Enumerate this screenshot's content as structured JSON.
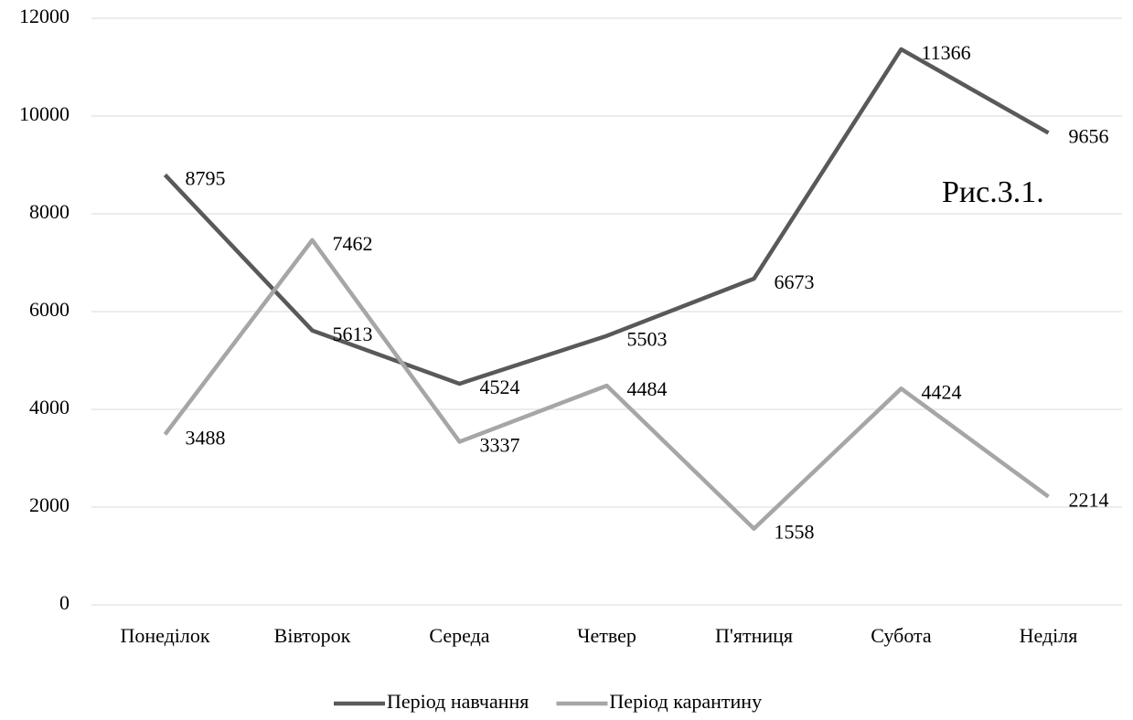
{
  "chart_data": {
    "type": "line",
    "annotation": "Рис.3.1.",
    "categories": [
      "Понеділок",
      "Вівторок",
      "Середа",
      "Четвер",
      "П'ятниця",
      "Субота",
      "Неділя"
    ],
    "series": [
      {
        "name": "Період навчання",
        "color": "#595959",
        "values": [
          8795,
          5613,
          4524,
          5503,
          6673,
          11366,
          9656
        ]
      },
      {
        "name": "Період карантину",
        "color": "#a6a6a6",
        "values": [
          3488,
          7462,
          3337,
          4484,
          1558,
          4424,
          2214
        ]
      }
    ],
    "ylim": [
      0,
      12000
    ],
    "yticks": [
      0,
      2000,
      4000,
      6000,
      8000,
      10000,
      12000
    ],
    "grid": true,
    "legend": "bottom"
  }
}
